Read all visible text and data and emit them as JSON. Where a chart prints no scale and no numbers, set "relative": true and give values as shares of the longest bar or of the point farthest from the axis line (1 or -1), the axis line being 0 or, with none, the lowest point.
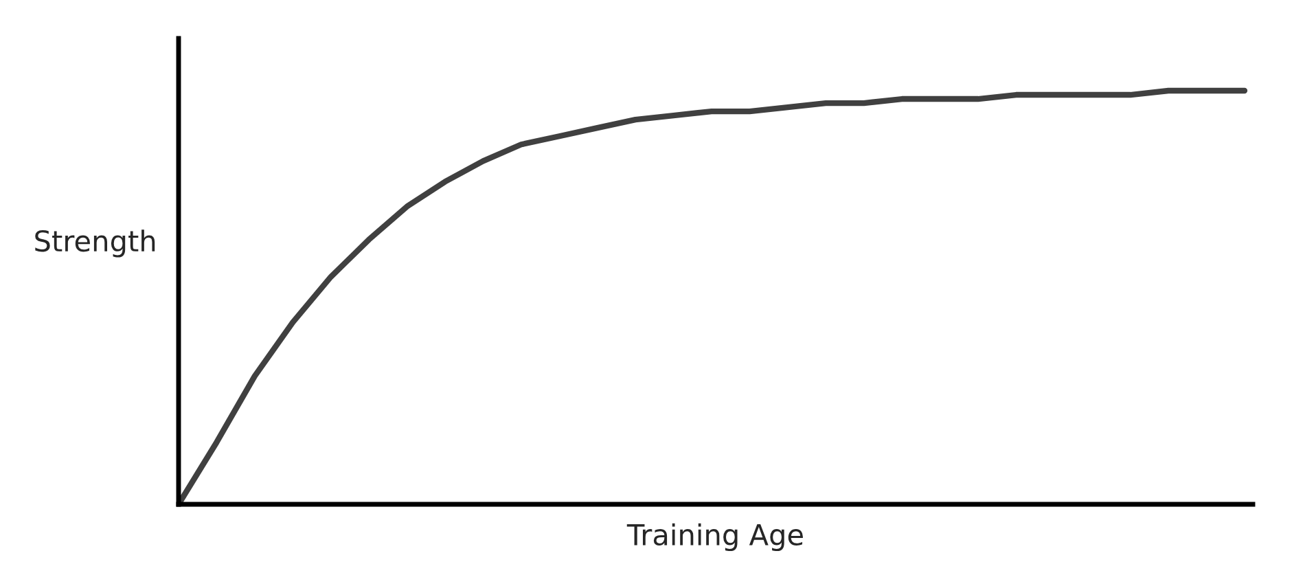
{
  "chart_data": {
    "type": "line",
    "relative": true,
    "xlabel": "Training Age",
    "ylabel": "Strength",
    "tick_labels": false,
    "categories": [
      null,
      null,
      null,
      null,
      null,
      null,
      null,
      null,
      null,
      null,
      null,
      null,
      null,
      null,
      null,
      null,
      null,
      null,
      null,
      null,
      null,
      null,
      null,
      null,
      null,
      null,
      null,
      null,
      null
    ],
    "series": [
      {
        "color": "#404040",
        "values": [
          0,
          0.15,
          0.31,
          0.44,
          0.55,
          0.64,
          0.72,
          0.78,
          0.83,
          0.87,
          0.89,
          0.91,
          0.93,
          0.94,
          0.95,
          0.95,
          0.96,
          0.97,
          0.97,
          0.98,
          0.98,
          0.98,
          0.99,
          0.99,
          0.99,
          0.99,
          1.0,
          1.0,
          1.0
        ]
      }
    ]
  }
}
